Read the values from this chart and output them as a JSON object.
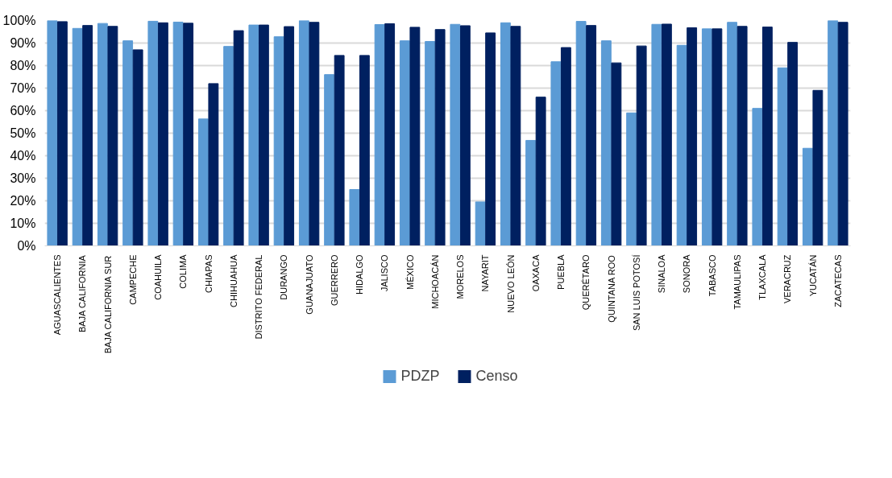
{
  "chart_data": {
    "type": "bar",
    "categories": [
      "AGUASCALIENTES",
      "BAJA CALIFORNIA",
      "BAJA CALIFORNIA SUR",
      "CAMPECHE",
      "COAHUILA",
      "COLIMA",
      "CHIAPAS",
      "CHIHUAHUA",
      "DISTRITO FEDERAL",
      "DURANGO",
      "GUANAJUATO",
      "GUERRERO",
      "HIDALGO",
      "JALISCO",
      "MÉXICO",
      "MICHOACÁN",
      "MORELOS",
      "NAYARIT",
      "NUEVO LEÓN",
      "OAXACA",
      "PUEBLA",
      "QUERÉTARO",
      "QUINTANA ROO",
      "SAN LUIS POTOSÍ",
      "SINALOA",
      "SONORA",
      "TABASCO",
      "TAMAULIPAS",
      "TLAXCALA",
      "VERACRUZ",
      "YUCATÁN",
      "ZACATECAS"
    ],
    "series": [
      {
        "name": "PDZP",
        "color": "#5b9bd5",
        "values": [
          100,
          96.5,
          98.7,
          91,
          99.7,
          99.3,
          56.3,
          88.5,
          98,
          92.8,
          100,
          76,
          25,
          98.2,
          91,
          90.7,
          98.3,
          19.5,
          99,
          46.8,
          81.7,
          99.6,
          91,
          59,
          98.3,
          89,
          96.3,
          99.2,
          61,
          79,
          43.3,
          100
        ]
      },
      {
        "name": "Censo",
        "color": "#002060",
        "values": [
          99.5,
          97.8,
          97.4,
          87,
          99,
          98.8,
          72,
          95.5,
          98,
          97.3,
          99.2,
          84.5,
          84.5,
          98.6,
          97,
          96,
          97.7,
          94.5,
          97.4,
          66,
          88,
          97.8,
          81.2,
          88.7,
          98.4,
          96.8,
          96.3,
          97.4,
          97.1,
          90.3,
          69,
          99.2
        ]
      }
    ],
    "ylim": [
      0,
      100
    ],
    "yticks": [
      {
        "value": 0,
        "label": "0%"
      },
      {
        "value": 10,
        "label": "10%"
      },
      {
        "value": 20,
        "label": "20%"
      },
      {
        "value": 30,
        "label": "30%"
      },
      {
        "value": 40,
        "label": "40%"
      },
      {
        "value": 50,
        "label": "50%"
      },
      {
        "value": 60,
        "label": "60%"
      },
      {
        "value": 70,
        "label": "70%"
      },
      {
        "value": 80,
        "label": "80%"
      },
      {
        "value": 90,
        "label": "90%"
      },
      {
        "value": 100,
        "label": "100%"
      }
    ],
    "grid": "y",
    "legend": "bottom"
  }
}
